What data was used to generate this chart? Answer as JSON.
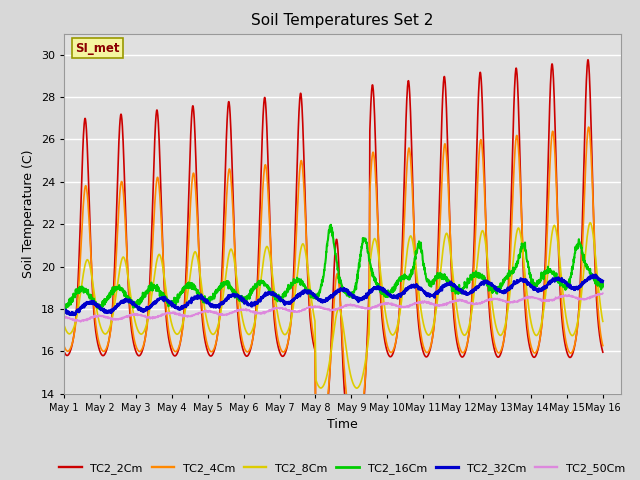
{
  "title": "Soil Temperatures Set 2",
  "xlabel": "Time",
  "ylabel": "Soil Temperature (C)",
  "ylim": [
    14,
    31
  ],
  "xlim_days": 15.5,
  "bg_color": "#e0e0e0",
  "annotation_text": "SI_met",
  "annotation_color": "#8b0000",
  "annotation_bg": "#f5f5a0",
  "annotation_border": "#999900",
  "series_order": [
    "TC2_2Cm",
    "TC2_4Cm",
    "TC2_8Cm",
    "TC2_16Cm",
    "TC2_32Cm",
    "TC2_50Cm"
  ],
  "series": {
    "TC2_2Cm": {
      "color": "#cc0000",
      "lw": 1.2
    },
    "TC2_4Cm": {
      "color": "#ff8800",
      "lw": 1.2
    },
    "TC2_8Cm": {
      "color": "#ddcc00",
      "lw": 1.2
    },
    "TC2_16Cm": {
      "color": "#00cc00",
      "lw": 1.5
    },
    "TC2_32Cm": {
      "color": "#0000cc",
      "lw": 1.8
    },
    "TC2_50Cm": {
      "color": "#dd88dd",
      "lw": 1.2
    }
  },
  "x_tick_labels": [
    "May 1",
    "May 2",
    "May 3",
    "May 4",
    "May 5",
    "May 6",
    "May 7",
    "May 8",
    "May 9",
    "May 10",
    "May 11",
    "May 12",
    "May 13",
    "May 14",
    "May 15",
    "May 16"
  ],
  "y_ticks": [
    14,
    16,
    18,
    20,
    22,
    24,
    26,
    28,
    30
  ],
  "grid_color": "#ffffff",
  "fig_facecolor": "#d8d8d8",
  "figsize": [
    6.4,
    4.8
  ],
  "dpi": 100
}
